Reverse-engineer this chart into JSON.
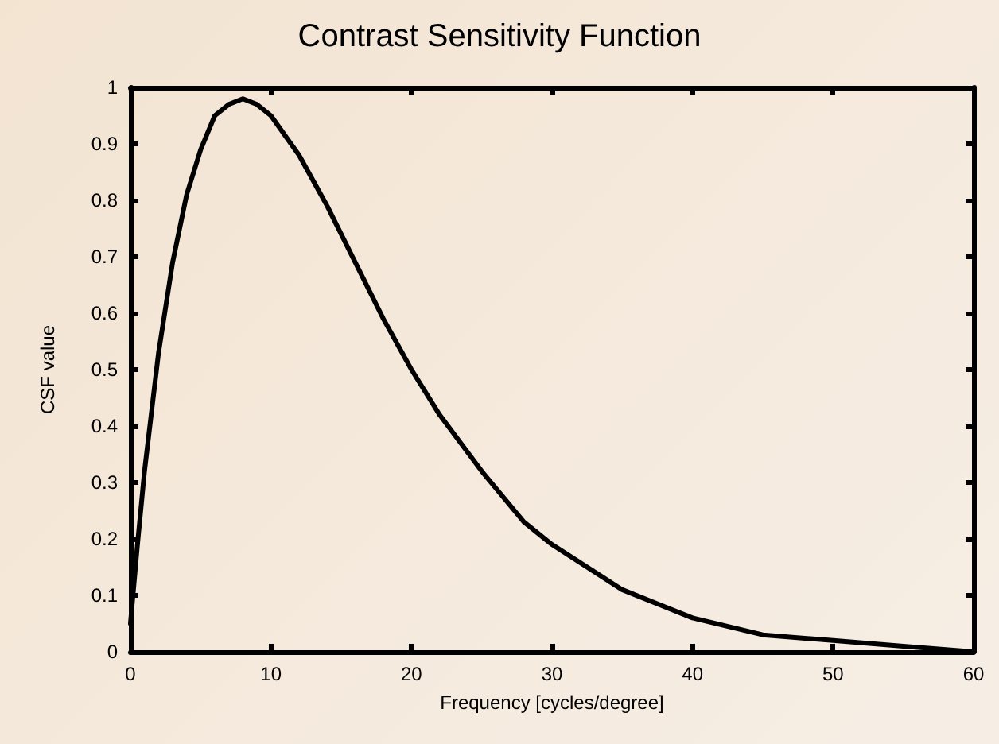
{
  "chart_data": {
    "type": "line",
    "title": "Contrast Sensitivity Function",
    "xlabel": "Frequency [cycles/degree]",
    "ylabel": "CSF value",
    "x": [
      0,
      0.5,
      1,
      2,
      3,
      4,
      5,
      6,
      7,
      8,
      9,
      10,
      12,
      14,
      16,
      18,
      20,
      22,
      25,
      28,
      30,
      35,
      40,
      45,
      50,
      55,
      60
    ],
    "series": [
      {
        "color": "#000000",
        "values": [
          0.05,
          0.19,
          0.32,
          0.53,
          0.69,
          0.81,
          0.89,
          0.95,
          0.97,
          0.98,
          0.97,
          0.95,
          0.88,
          0.79,
          0.69,
          0.59,
          0.5,
          0.42,
          0.32,
          0.23,
          0.19,
          0.11,
          0.06,
          0.03,
          0.02,
          0.01,
          0.0
        ]
      }
    ],
    "xlim": [
      0,
      60
    ],
    "xticks": [
      0,
      10,
      20,
      30,
      40,
      50,
      60
    ],
    "ylim": [
      0,
      1
    ],
    "yticks": [
      0,
      0.1,
      0.2,
      0.3,
      0.4,
      0.5,
      0.6,
      0.7,
      0.8,
      0.9,
      1
    ],
    "grid": false,
    "marker": "none",
    "line_style": "solid"
  }
}
